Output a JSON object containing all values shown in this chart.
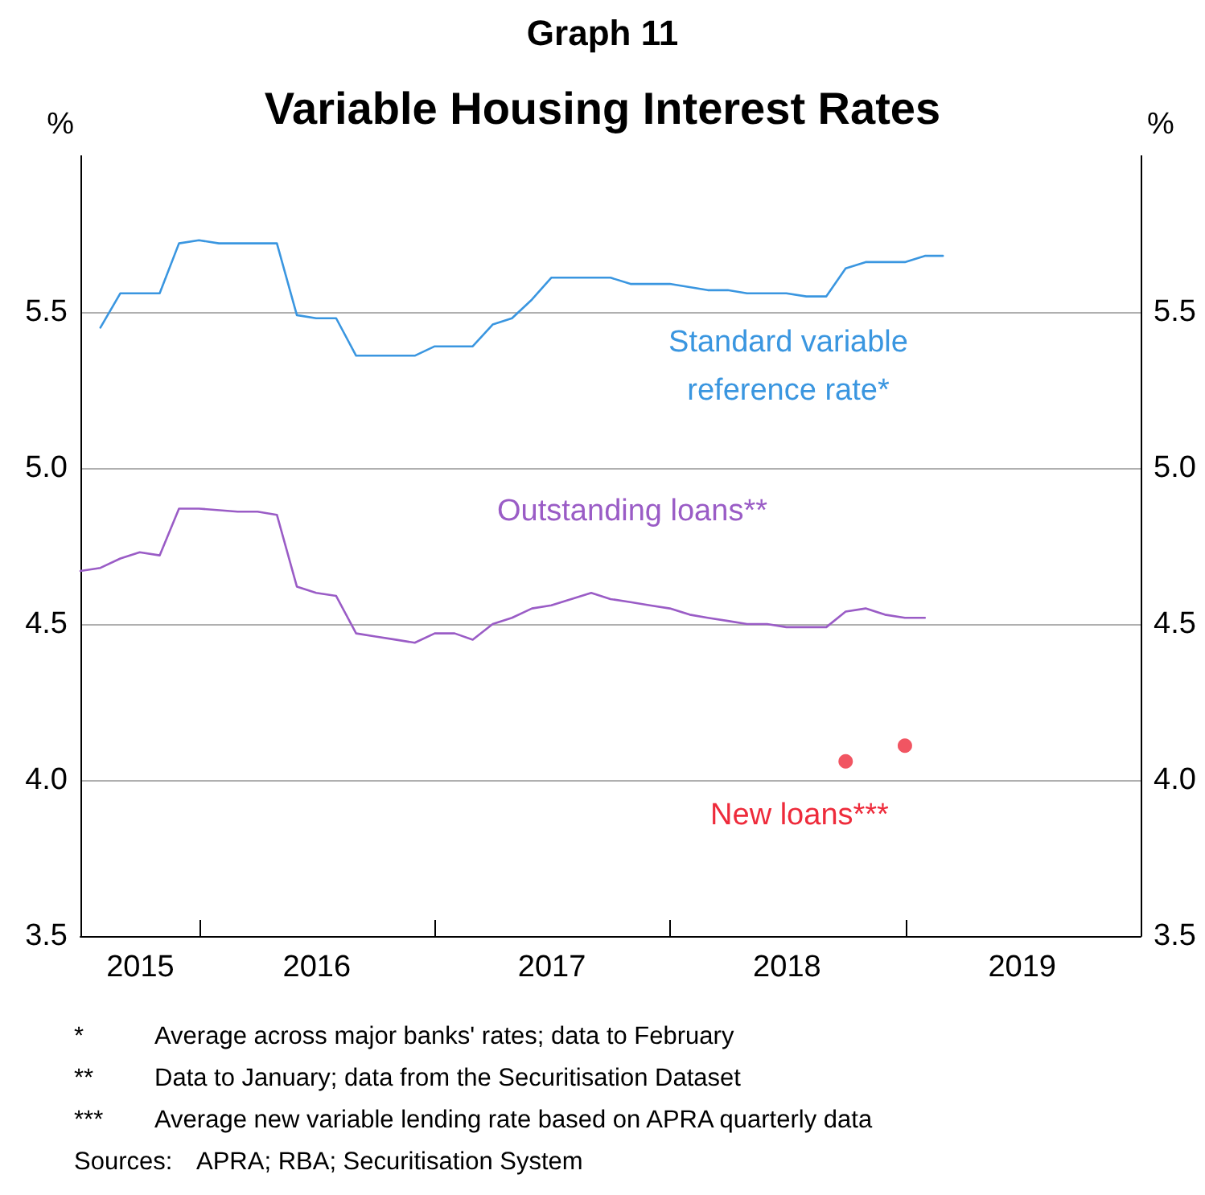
{
  "chart_data": {
    "type": "line",
    "title": "Graph 11",
    "subtitle": "Variable Housing Interest Rates",
    "ylabel": "%",
    "y2label": "%",
    "xlim": [
      "2015-06-30",
      "2020-01-01"
    ],
    "xticks": [
      {
        "value": "2015-10-01",
        "label": "2015"
      },
      {
        "value": "2016-01-01",
        "label": null
      },
      {
        "value": "2016-07-01",
        "label": "2016"
      },
      {
        "value": "2017-01-01",
        "label": null
      },
      {
        "value": "2017-07-01",
        "label": "2017"
      },
      {
        "value": "2018-01-01",
        "label": null
      },
      {
        "value": "2018-07-01",
        "label": "2018"
      },
      {
        "value": "2019-01-01",
        "label": null
      },
      {
        "value": "2019-07-01",
        "label": "2019"
      }
    ],
    "ylim": [
      3.5,
      6
    ],
    "yticks": [
      3.5,
      {
        "value": 4,
        "label": "4.0"
      },
      4.5,
      {
        "value": 5,
        "label": "5.0"
      },
      5.5
    ],
    "y2lim": [
      3.5,
      6
    ],
    "y2ticks": [
      3.5,
      {
        "value": 4,
        "label": "4.0"
      },
      4.5,
      {
        "value": 5,
        "label": "5.0"
      },
      5.5
    ],
    "grid": "y",
    "legend": false,
    "marker": "none",
    "series": [
      {
        "name": "Standard variable\nreference rate*",
        "color": "#3a96e0",
        "x": [
          "2015-07-31",
          "2015-08-31",
          "2015-10-31",
          "2015-11-30",
          "2015-12-31",
          "2016-01-31",
          "2016-04-30",
          "2016-05-31",
          "2016-06-30",
          "2016-07-31",
          "2016-08-31",
          "2016-11-30",
          "2016-12-31",
          "2017-02-28",
          "2017-03-31",
          "2017-04-30",
          "2017-05-31",
          "2017-06-30",
          "2017-09-30",
          "2017-10-31",
          "2017-12-31",
          "2018-02-28",
          "2018-03-31",
          "2018-04-30",
          "2018-06-30",
          "2018-07-31",
          "2018-08-31",
          "2018-09-30",
          "2018-10-31",
          "2018-12-31",
          "2019-01-31",
          "2019-02-28"
        ],
        "values": [
          5.45,
          5.56,
          5.56,
          5.72,
          5.73,
          5.72,
          5.72,
          5.49,
          5.48,
          5.48,
          5.36,
          5.36,
          5.39,
          5.39,
          5.46,
          5.48,
          5.54,
          5.61,
          5.61,
          5.59,
          5.59,
          5.57,
          5.57,
          5.56,
          5.56,
          5.55,
          5.55,
          5.64,
          5.66,
          5.66,
          5.68,
          5.68
        ]
      },
      {
        "name": "Outstanding loans**",
        "color": "#9a5cc6",
        "x": [
          "2015-06-30",
          "2015-07-31",
          "2015-08-31",
          "2015-09-30",
          "2015-10-31",
          "2015-11-30",
          "2015-12-31",
          "2016-02-29",
          "2016-03-31",
          "2016-04-30",
          "2016-05-31",
          "2016-06-30",
          "2016-07-31",
          "2016-08-31",
          "2016-09-30",
          "2016-10-31",
          "2016-11-30",
          "2016-12-31",
          "2017-01-31",
          "2017-02-28",
          "2017-03-31",
          "2017-04-30",
          "2017-05-31",
          "2017-06-30",
          "2017-07-31",
          "2017-08-31",
          "2017-09-30",
          "2017-10-31",
          "2017-11-30",
          "2017-12-31",
          "2018-01-31",
          "2018-02-28",
          "2018-03-31",
          "2018-04-30",
          "2018-05-31",
          "2018-06-30",
          "2018-07-31",
          "2018-08-31",
          "2018-09-30",
          "2018-10-31",
          "2018-11-30",
          "2018-12-31",
          "2019-01-31"
        ],
        "values": [
          4.67,
          4.68,
          4.71,
          4.73,
          4.72,
          4.87,
          4.87,
          4.86,
          4.86,
          4.85,
          4.62,
          4.6,
          4.59,
          4.47,
          4.46,
          4.45,
          4.44,
          4.47,
          4.47,
          4.45,
          4.5,
          4.52,
          4.55,
          4.56,
          4.58,
          4.6,
          4.58,
          4.57,
          4.56,
          4.55,
          4.53,
          4.52,
          4.51,
          4.5,
          4.5,
          4.49,
          4.49,
          4.49,
          4.54,
          4.55,
          4.53,
          4.52,
          4.52
        ]
      },
      {
        "name": "New loans***",
        "type": "scatter",
        "marker": "circle",
        "color": "#ee2b3b",
        "x": [
          "2018-09-30",
          "2018-12-31"
        ],
        "values": [
          4.06,
          4.11
        ]
      }
    ],
    "annotations": [
      "* Average across major banks' rates; data to February",
      "** Data to January; data from the Securitisation Dataset",
      "*** Average new variable lending rate based on APRA quarterly data",
      "Sources: APRA; RBA; Securitisation System"
    ]
  }
}
